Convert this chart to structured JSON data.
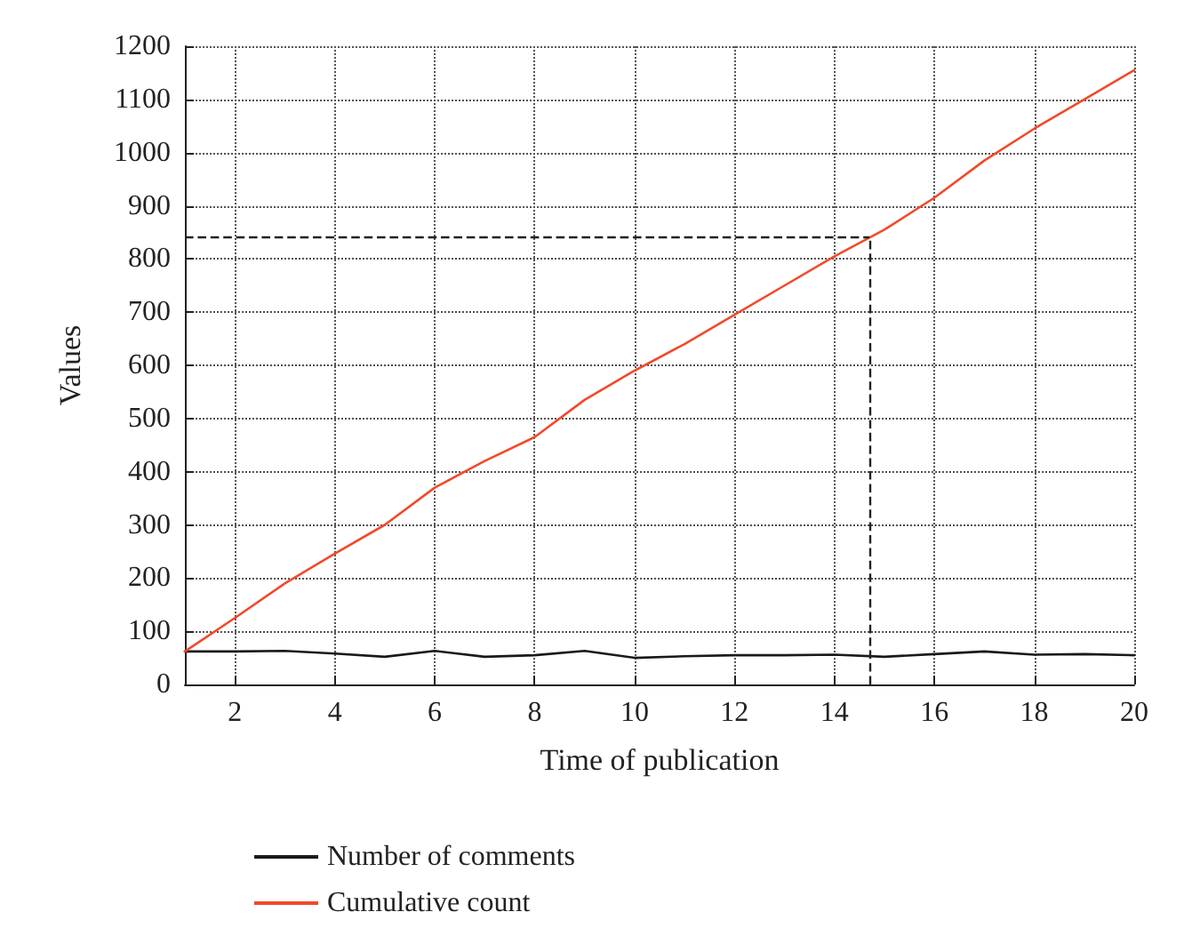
{
  "chart_data": {
    "type": "line",
    "xlabel": "Time of publication",
    "ylabel": "Values",
    "x": [
      1,
      2,
      3,
      4,
      5,
      6,
      7,
      8,
      9,
      10,
      11,
      12,
      13,
      14,
      15,
      16,
      17,
      18,
      19,
      20
    ],
    "series": [
      {
        "name": "Number of comments",
        "color": "#1a1a1a",
        "values": [
          62,
          62,
          63,
          58,
          52,
          63,
          52,
          55,
          63,
          50,
          53,
          55,
          55,
          56,
          52,
          57,
          62,
          56,
          57,
          55
        ]
      },
      {
        "name": "Cumulative count",
        "color": "#f04a2a",
        "values": [
          62,
          125,
          190,
          246,
          300,
          370,
          420,
          465,
          535,
          590,
          640,
          695,
          750,
          805,
          855,
          915,
          985,
          1045,
          1100,
          1155
        ]
      }
    ],
    "xlim": [
      1,
      20
    ],
    "xticks": [
      2,
      4,
      6,
      8,
      10,
      12,
      14,
      16,
      18,
      20
    ],
    "ylim": [
      0,
      1200
    ],
    "yticks": [
      0,
      100,
      200,
      300,
      400,
      500,
      600,
      700,
      800,
      900,
      1000,
      1100,
      1200
    ],
    "ref_lines": [
      {
        "axis": "x",
        "value": 14.7,
        "color": "#222222",
        "line_style": "dashed"
      },
      {
        "axis": "y",
        "value": 840,
        "color": "#222222",
        "line_style": "dashed"
      }
    ],
    "grid": true,
    "legend": "bottom",
    "marker": "none",
    "line_style": "solid"
  }
}
